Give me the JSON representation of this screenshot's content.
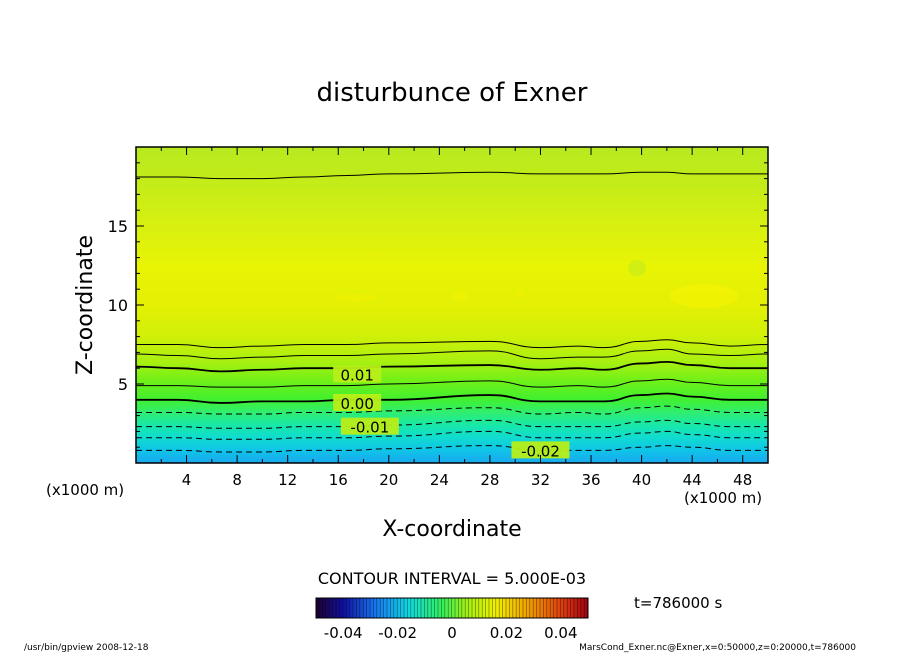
{
  "chart_data": {
    "type": "contour",
    "title": "disturbunce of Exner",
    "xlabel": "X-coordinate",
    "ylabel": "Z-coordinate",
    "x_unit_left": "(x1000 m)",
    "x_unit_right": "(x1000 m)",
    "xlim": [
      0,
      50
    ],
    "ylim": [
      0,
      20
    ],
    "x_ticks": [
      4,
      8,
      12,
      16,
      20,
      24,
      28,
      32,
      36,
      40,
      44,
      48
    ],
    "y_ticks": [
      5,
      10,
      15
    ],
    "contour_interval_text": "CONTOUR INTERVAL = 5.000E-03",
    "contour_labels": [
      {
        "text": "0.01",
        "x": 17.5,
        "z": 5.6
      },
      {
        "text": "0.00",
        "x": 17.5,
        "z": 3.8
      },
      {
        "text": "-0.01",
        "x": 18.5,
        "z": 2.3
      },
      {
        "text": "-0.02",
        "x": 32.0,
        "z": 0.8
      }
    ],
    "contours": [
      {
        "level": 0.02,
        "style": "thin",
        "z": [
          7.5,
          7.5,
          7.3,
          7.4,
          7.5,
          7.5,
          7.6,
          7.7,
          7.3,
          7.4,
          7.3,
          7.7,
          7.8,
          7.6,
          7.4,
          7.5
        ]
      },
      {
        "level": 0.015,
        "style": "thin",
        "z": [
          6.9,
          6.8,
          6.6,
          6.7,
          6.8,
          6.8,
          6.9,
          7.1,
          6.6,
          6.7,
          6.7,
          7.1,
          7.2,
          6.9,
          6.8,
          6.9
        ]
      },
      {
        "level": 0.01,
        "style": "thick",
        "z": [
          6.1,
          6.0,
          5.8,
          5.9,
          6.0,
          6.0,
          6.1,
          6.2,
          5.9,
          6.0,
          5.9,
          6.3,
          6.4,
          6.2,
          6.0,
          6.0
        ]
      },
      {
        "level": 0.005,
        "style": "thin",
        "z": [
          4.9,
          4.9,
          4.8,
          4.8,
          4.9,
          4.9,
          5.0,
          5.2,
          4.8,
          4.9,
          4.8,
          5.2,
          5.3,
          5.1,
          4.9,
          4.9
        ]
      },
      {
        "level": 0.0,
        "style": "thick",
        "z": [
          4.0,
          4.0,
          3.8,
          3.9,
          3.9,
          4.0,
          4.0,
          4.3,
          3.9,
          3.9,
          3.9,
          4.3,
          4.4,
          4.2,
          4.0,
          4.0
        ]
      },
      {
        "level": -0.005,
        "style": "dashed",
        "z": [
          3.2,
          3.2,
          3.1,
          3.1,
          3.2,
          3.2,
          3.3,
          3.5,
          3.1,
          3.2,
          3.1,
          3.5,
          3.6,
          3.4,
          3.2,
          3.2
        ]
      },
      {
        "level": -0.01,
        "style": "dashed",
        "z": [
          2.3,
          2.3,
          2.2,
          2.2,
          2.3,
          2.3,
          2.4,
          2.7,
          2.3,
          2.3,
          2.3,
          2.6,
          2.7,
          2.5,
          2.3,
          2.3
        ]
      },
      {
        "level": -0.015,
        "style": "dashed",
        "z": [
          1.6,
          1.6,
          1.5,
          1.5,
          1.6,
          1.6,
          1.7,
          2.0,
          1.6,
          1.6,
          1.6,
          1.9,
          2.0,
          1.8,
          1.6,
          1.6
        ]
      },
      {
        "level": -0.02,
        "style": "dashed",
        "z": [
          0.8,
          0.8,
          0.7,
          0.7,
          0.8,
          0.8,
          0.9,
          1.1,
          0.8,
          0.8,
          0.8,
          1.0,
          1.1,
          1.0,
          0.8,
          0.8
        ]
      },
      {
        "level": 0.015,
        "style": "thin",
        "z": [
          18.1,
          18.1,
          18.0,
          18.0,
          18.1,
          18.2,
          18.3,
          18.4,
          18.3,
          18.3,
          18.3,
          18.4,
          18.4,
          18.3,
          18.3,
          18.3
        ]
      }
    ],
    "contour_x": [
      0,
      3.3,
      6.7,
      10,
      13.3,
      16.7,
      20,
      28,
      32,
      35,
      37,
      40,
      42,
      44,
      47,
      50
    ],
    "colorbar": {
      "range": [
        -0.05,
        0.05
      ],
      "tick_labels": [
        "-0.04",
        "-0.02",
        "0",
        "0.02",
        "0.04"
      ],
      "tick_values": [
        -0.04,
        -0.02,
        0,
        0.02,
        0.04
      ]
    },
    "time_label": "t=786000 s",
    "footer_left": "/usr/bin/gpview   2008-12-18",
    "footer_right": "MarsCond_Exner.nc@Exner,x=0:50000,z=0:20000,t=786000"
  }
}
